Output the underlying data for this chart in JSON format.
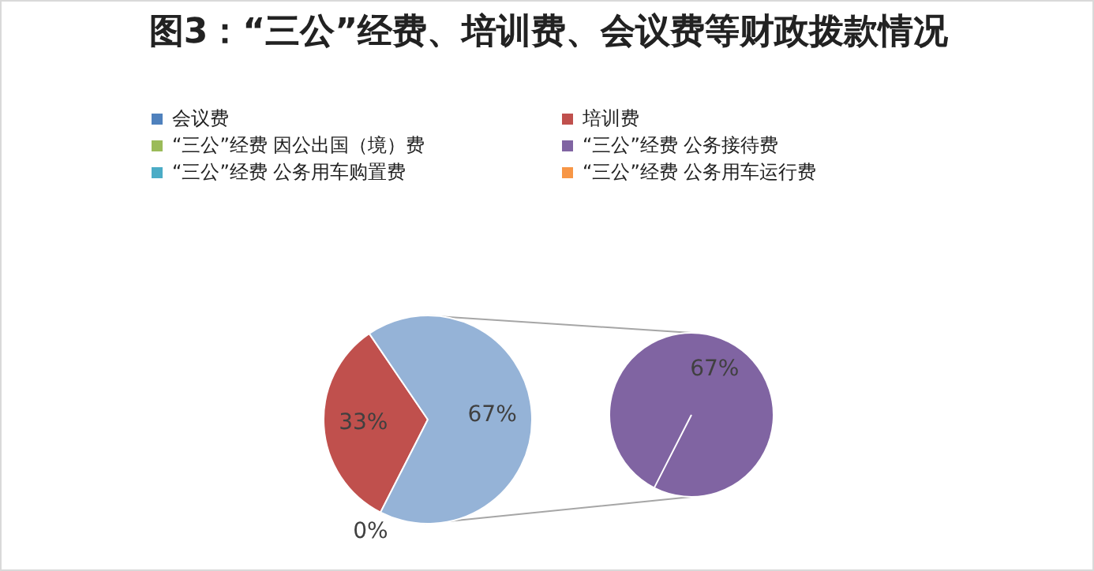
{
  "chart_data": [
    {
      "type": "pie",
      "title": "图3：“三公”经费、培训费、会议费等财政拨款情况",
      "categories": [
        "会议费",
        "培训费",
        null
      ],
      "values": [
        0,
        33,
        67
      ],
      "colors": [
        "#4f81bd",
        "#c0504d",
        "#95b3d7"
      ],
      "value_labels": [
        "0%",
        "33%",
        "67%"
      ],
      "legend": "top"
    },
    {
      "type": "pie",
      "categories": [
        "“三公”经费 因公出国（境）费",
        "“三公”经费 公务接待费",
        "“三公”经费 公务用车购置费",
        "“三公”经费 公务用车运行费"
      ],
      "values": [
        0,
        67,
        0,
        0
      ],
      "colors": [
        "#9bbb59",
        "#8064a2",
        "#4bacc6",
        "#f79646"
      ],
      "value_labels": [
        null,
        "67%",
        null,
        null
      ],
      "legend": "top"
    }
  ]
}
